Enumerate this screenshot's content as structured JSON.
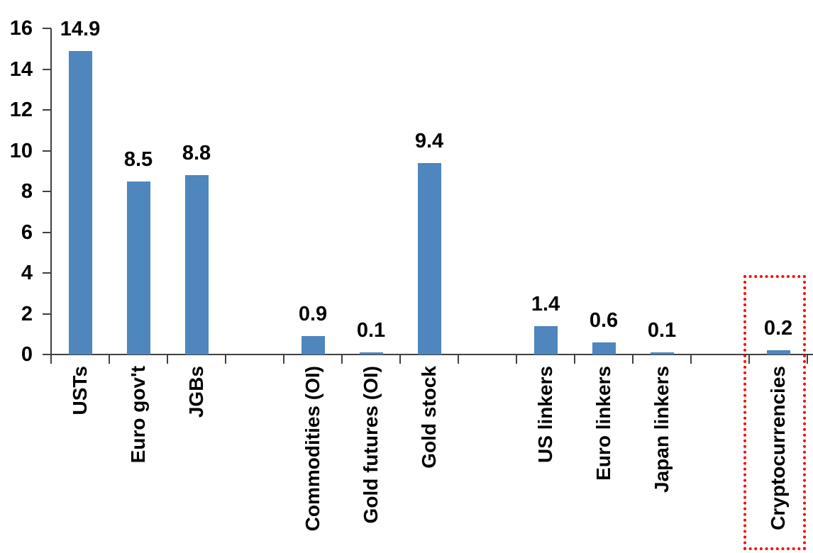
{
  "chart_data": {
    "type": "bar",
    "title": "",
    "xlabel": "",
    "ylabel": "",
    "categories": [
      "USTs",
      "Euro gov't",
      "JGBs",
      "",
      "Commodities (OI)",
      "Gold futures (OI)",
      "Gold stock",
      "",
      "US linkers",
      "Euro linkers",
      "Japan linkers",
      "",
      "Cryptocurrencies"
    ],
    "values": [
      14.9,
      8.5,
      8.8,
      null,
      0.9,
      0.1,
      9.4,
      null,
      1.4,
      0.6,
      0.1,
      null,
      0.2
    ],
    "value_labels": [
      "14.9",
      "8.5",
      "8.8",
      null,
      "0.9",
      "0.1",
      "9.4",
      null,
      "1.4",
      "0.6",
      "0.1",
      null,
      "0.2"
    ],
    "y_ticks": [
      0,
      2,
      4,
      6,
      8,
      10,
      12,
      14,
      16
    ],
    "ylim": [
      0,
      16
    ],
    "grid": false,
    "legend": "none",
    "data_labels_position": "outside-end",
    "bar_color": "#4E86BD",
    "axis_color": "#404040",
    "text_color": "#000000",
    "highlight": {
      "target": "Cryptocurrencies",
      "shape": "dotted-rectangle",
      "color": "#FF0000"
    }
  }
}
